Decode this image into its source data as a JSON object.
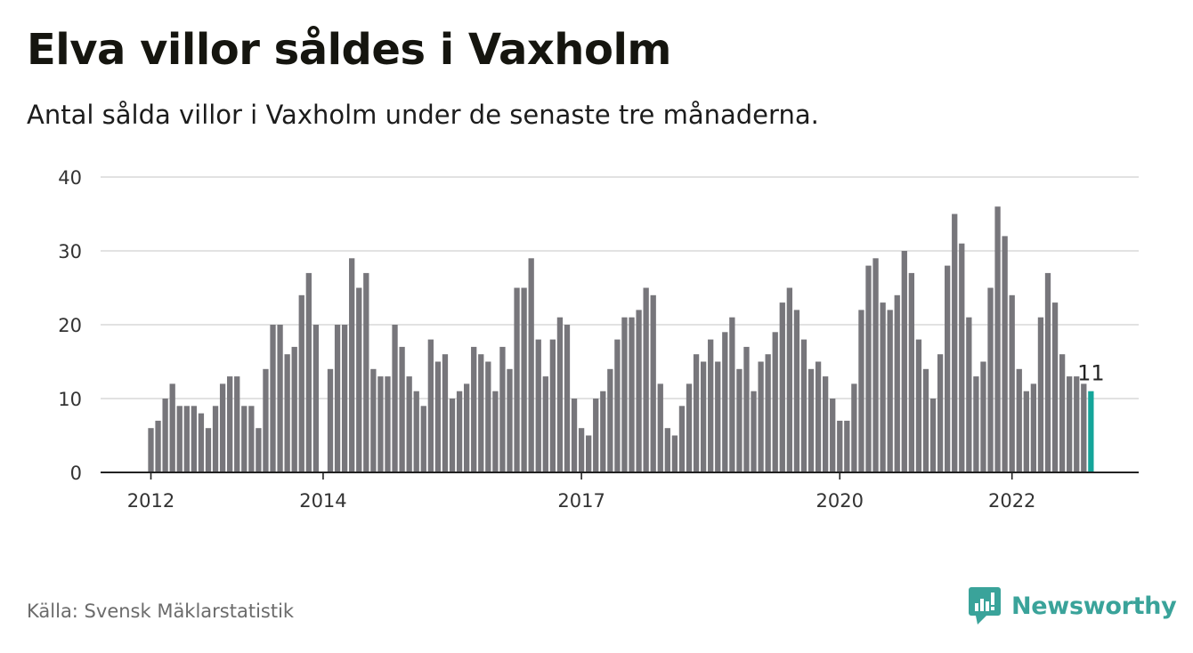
{
  "title": "Elva villor såldes i Vaxholm",
  "subtitle": "Antal sålda villor i Vaxholm under de senaste tre månaderna.",
  "source": "Källa: Svensk Mäklarstatistik",
  "brand": {
    "name": "Newsworthy",
    "icon": "newsworthy-logo-icon",
    "color": "#3aa39a"
  },
  "colors": {
    "bar": "#77767b",
    "highlight": "#14a59a",
    "grid": "#d9d9d9",
    "axis": "#222222"
  },
  "chart_data": {
    "type": "bar",
    "title": "Elva villor såldes i Vaxholm",
    "subtitle": "Antal sålda villor i Vaxholm under de senaste tre månaderna.",
    "xlabel": "",
    "ylabel": "",
    "ylim": [
      0,
      40
    ],
    "yticks": [
      0,
      10,
      20,
      30,
      40
    ],
    "xtick_labels": [
      {
        "label": "2012",
        "index": 0
      },
      {
        "label": "2014",
        "index": 24
      },
      {
        "label": "2017",
        "index": 60
      },
      {
        "label": "2020",
        "index": 96
      },
      {
        "label": "2022",
        "index": 120
      }
    ],
    "grid": true,
    "highlight_index": 131,
    "highlight_label": "11",
    "values": [
      6,
      7,
      10,
      12,
      9,
      9,
      9,
      8,
      6,
      9,
      12,
      13,
      13,
      9,
      9,
      6,
      14,
      20,
      20,
      16,
      17,
      24,
      27,
      20,
      0,
      14,
      20,
      20,
      29,
      25,
      27,
      14,
      13,
      13,
      20,
      17,
      13,
      11,
      9,
      18,
      15,
      16,
      10,
      11,
      12,
      17,
      16,
      15,
      11,
      17,
      14,
      25,
      25,
      29,
      18,
      13,
      18,
      21,
      20,
      10,
      6,
      5,
      10,
      11,
      14,
      18,
      21,
      21,
      22,
      25,
      24,
      12,
      6,
      5,
      9,
      12,
      16,
      15,
      18,
      15,
      19,
      21,
      14,
      17,
      11,
      15,
      16,
      19,
      23,
      25,
      22,
      18,
      14,
      15,
      13,
      10,
      7,
      7,
      12,
      22,
      28,
      29,
      23,
      22,
      24,
      30,
      27,
      18,
      14,
      10,
      16,
      28,
      35,
      31,
      21,
      13,
      15,
      25,
      36,
      32,
      24,
      14,
      11,
      12,
      21,
      27,
      23,
      16,
      13,
      13,
      12,
      11
    ]
  }
}
